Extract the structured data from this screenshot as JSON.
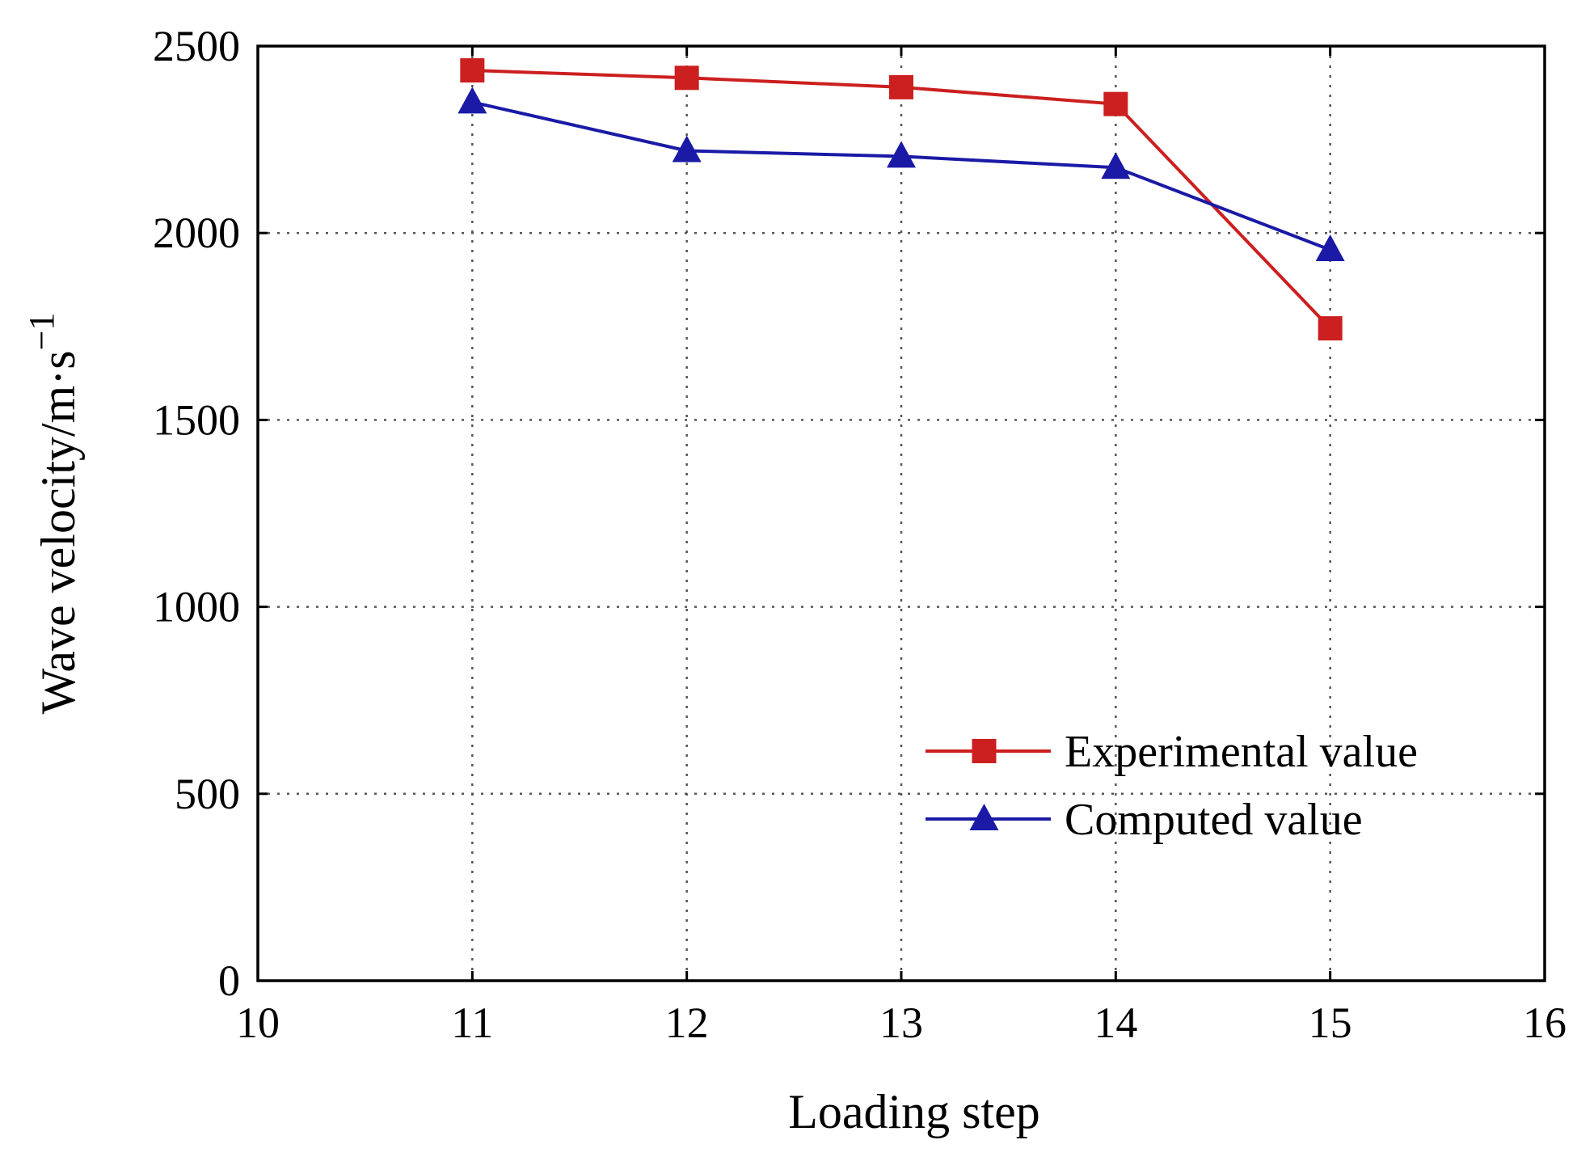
{
  "chart_data": {
    "type": "line",
    "title": "",
    "xlabel": "Loading step",
    "ylabel": "Wave velocity/m·s",
    "ylabel_superscript": "−1",
    "xlim": [
      10,
      16
    ],
    "ylim": [
      0,
      2500
    ],
    "xticks": [
      10,
      11,
      12,
      13,
      14,
      15,
      16
    ],
    "yticks": [
      0,
      500,
      1000,
      1500,
      2000,
      2500
    ],
    "grid": true,
    "legend_position": "lower-right",
    "x": [
      11,
      12,
      13,
      14,
      15
    ],
    "series": [
      {
        "name": "Experimental value",
        "color": "#cc1f1f",
        "marker": "square",
        "values": [
          2435,
          2415,
          2390,
          2345,
          1745
        ]
      },
      {
        "name": "Computed value",
        "color": "#1a1aa6",
        "marker": "triangle",
        "values": [
          2350,
          2220,
          2205,
          2175,
          1955
        ]
      }
    ]
  }
}
